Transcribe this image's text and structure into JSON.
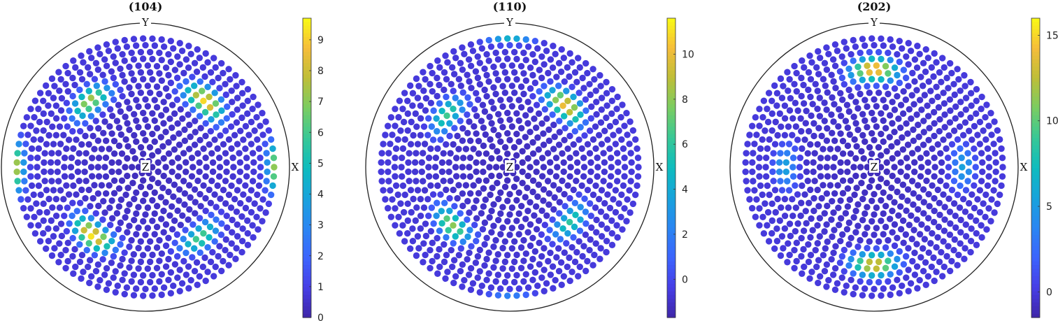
{
  "chart_data": [
    {
      "type": "scatter",
      "title": "(104)",
      "axis_labels": {
        "x": "X",
        "y": "Y",
        "z": "Z"
      },
      "colorbar": {
        "min": 0,
        "max": 9.7,
        "ticks": [
          0,
          1,
          2,
          3,
          4,
          5,
          6,
          7,
          8,
          9
        ]
      },
      "peaks": [
        {
          "azimuth_deg": 0,
          "polar_frac": 0.93,
          "value": 8.5
        },
        {
          "azimuth_deg": 180,
          "polar_frac": 0.93,
          "value": 9.0
        },
        {
          "azimuth_deg": 48,
          "polar_frac": 0.62,
          "value": 9.3
        },
        {
          "azimuth_deg": 130,
          "polar_frac": 0.6,
          "value": 7.5
        },
        {
          "azimuth_deg": 232,
          "polar_frac": 0.6,
          "value": 9.5
        },
        {
          "azimuth_deg": 308,
          "polar_frac": 0.62,
          "value": 6.2
        }
      ]
    },
    {
      "type": "scatter",
      "title": "(110)",
      "axis_labels": {
        "x": "X",
        "y": "Y",
        "z": "Z"
      },
      "colorbar": {
        "min": -1.7,
        "max": 11.6,
        "ticks": [
          0,
          2,
          4,
          6,
          8,
          10
        ]
      },
      "peaks": [
        {
          "azimuth_deg": 90,
          "polar_frac": 0.97,
          "value": 11.5
        },
        {
          "azimuth_deg": 270,
          "polar_frac": 0.97,
          "value": 6.5
        },
        {
          "azimuth_deg": 48,
          "polar_frac": 0.58,
          "value": 10.5
        },
        {
          "azimuth_deg": 140,
          "polar_frac": 0.57,
          "value": 6.5
        },
        {
          "azimuth_deg": 225,
          "polar_frac": 0.57,
          "value": 8.0
        },
        {
          "azimuth_deg": 318,
          "polar_frac": 0.57,
          "value": 6.0
        }
      ]
    },
    {
      "type": "scatter",
      "title": "(202)",
      "axis_labels": {
        "x": "X",
        "y": "Y",
        "z": "Z"
      },
      "colorbar": {
        "min": -1.5,
        "max": 16,
        "ticks": [
          0,
          5,
          10,
          15
        ]
      },
      "peaks": [
        {
          "azimuth_deg": 90,
          "polar_frac": 0.68,
          "value": 15.5
        },
        {
          "azimuth_deg": 270,
          "polar_frac": 0.68,
          "value": 14.0
        },
        {
          "azimuth_deg": 0,
          "polar_frac": 0.62,
          "value": 5.5
        },
        {
          "azimuth_deg": 180,
          "polar_frac": 0.62,
          "value": 5.5
        }
      ]
    }
  ]
}
